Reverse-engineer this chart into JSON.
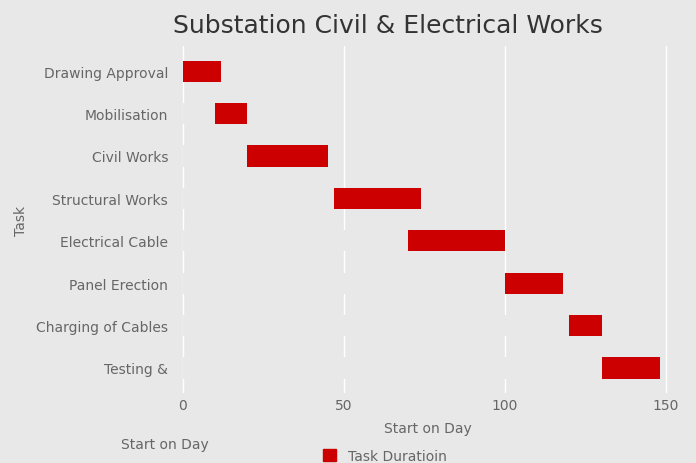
{
  "title": "Substation Civil & Electrical Works",
  "tasks": [
    "Drawing Approval",
    "Mobilisation",
    "Civil Works",
    "Structural Works",
    "Electrical Cable",
    "Panel Erection",
    "Charging of Cables",
    "Testing &"
  ],
  "starts": [
    0,
    10,
    20,
    47,
    70,
    100,
    120,
    130
  ],
  "durations": [
    12,
    10,
    25,
    27,
    30,
    18,
    10,
    18
  ],
  "bar_color": "#cc0000",
  "invisible_color": "#e8e8e8",
  "xlabel": "Start on Day",
  "ylabel": "Task",
  "legend_label": "Task Duratioin",
  "legend_text_before": "Start on Day",
  "xlim": [
    -3,
    155
  ],
  "xticks": [
    0,
    50,
    100,
    150
  ],
  "background_color": "#e8e8e8",
  "title_fontsize": 18,
  "axis_fontsize": 10,
  "tick_fontsize": 10,
  "grid_color": "#ffffff",
  "bar_height": 0.5
}
